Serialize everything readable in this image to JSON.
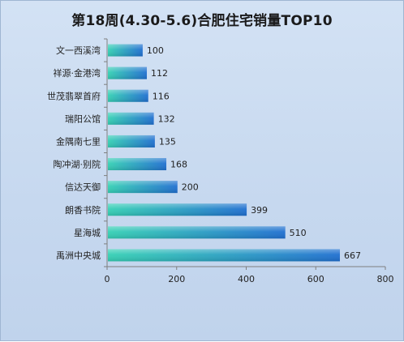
{
  "chart_data": {
    "type": "bar",
    "orientation": "horizontal",
    "title": "第18周(4.30-5.6)合肥住宅销量TOP10",
    "categories": [
      "文一西溪湾",
      "祥源·金港湾",
      "世茂翡翠首府",
      "瑞阳公馆",
      "金隅南七里",
      "陶冲湖·别院",
      "信达天御",
      "朗香书院",
      "星海城",
      "禹洲中央城"
    ],
    "values": [
      100,
      112,
      116,
      132,
      135,
      168,
      200,
      399,
      510,
      667
    ],
    "xlim": [
      0,
      800
    ],
    "xticks": [
      0,
      200,
      400,
      600,
      800
    ],
    "grid": false,
    "legend": "none",
    "colors": {
      "bar_start": "#35d0b4",
      "bar_end": "#1f6fd0",
      "background": "#c8daf0"
    }
  }
}
